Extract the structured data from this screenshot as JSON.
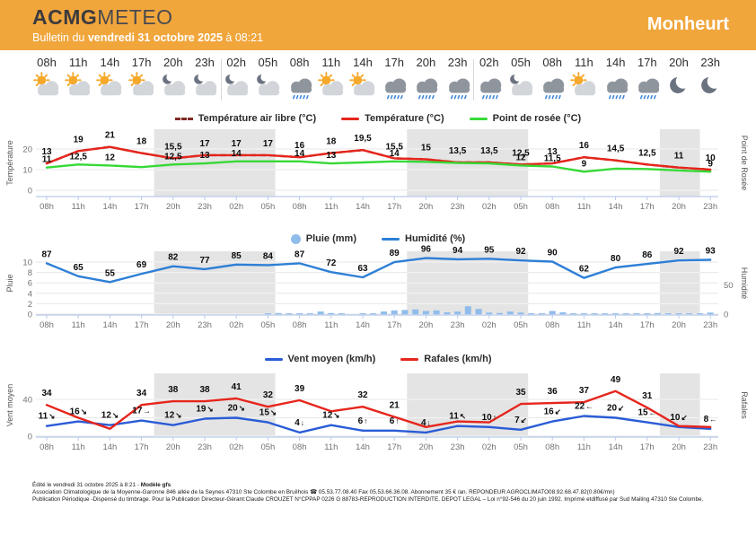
{
  "header": {
    "brand_primary": "ACMG",
    "brand_secondary": "METEO",
    "bulletin_prefix": "Bulletin du ",
    "bulletin_date": "vendredi 31 octobre 2025",
    "bulletin_time": " à 08:21",
    "location": "Monheurt"
  },
  "timeline": {
    "times": [
      "08h",
      "11h",
      "14h",
      "17h",
      "20h",
      "23h",
      "02h",
      "05h",
      "08h",
      "11h",
      "14h",
      "17h",
      "20h",
      "23h",
      "02h",
      "05h",
      "08h",
      "11h",
      "14h",
      "17h",
      "20h",
      "23h"
    ],
    "icons": [
      "partly-sunny",
      "partly-sunny",
      "partly-sunny",
      "partly-sunny",
      "cloud-moon",
      "cloud-moon",
      "cloud-moon",
      "cloud-moon",
      "rain",
      "partly-sunny",
      "partly-sunny",
      "rain",
      "rain",
      "rain",
      "rain",
      "cloud-moon",
      "rain",
      "partly-sunny",
      "rain",
      "rain",
      "moon",
      "moon"
    ],
    "day_separators_after": [
      5,
      13
    ]
  },
  "night_bands_hours": [
    [
      10.2,
      21.7
    ],
    [
      34.2,
      45.7
    ],
    [
      58.2,
      62
    ]
  ],
  "chart_data": [
    {
      "type": "line",
      "id": "temperature",
      "categories": [
        "08h",
        "11h",
        "14h",
        "17h",
        "20h",
        "23h",
        "02h",
        "05h",
        "08h",
        "11h",
        "14h",
        "17h",
        "20h",
        "23h",
        "02h",
        "05h",
        "08h",
        "11h",
        "14h",
        "17h",
        "20h",
        "23h"
      ],
      "ylabel_left": "Température",
      "ylabel_right": "Point de Rosée",
      "y_ticks": [
        0,
        10,
        20
      ],
      "ylim": [
        -3,
        26
      ],
      "legend": [
        {
          "label": "Température air libre (°C)",
          "color": "#7E2A22",
          "style": "dash"
        },
        {
          "label": "Température (°C)",
          "color": "#E6251C",
          "style": "line"
        },
        {
          "label": "Point de rosée (°C)",
          "color": "#36D936",
          "style": "line"
        }
      ],
      "series": [
        {
          "key": "air-temp-line",
          "name": "Température air libre (°C)",
          "color": "#7E2A22",
          "dash": true,
          "values": [
            13,
            19,
            21,
            18,
            15.5,
            17,
            17,
            17,
            16,
            18,
            19.5,
            15.5,
            15,
            13.5,
            13.5,
            12.5,
            13,
            16,
            14.5,
            12.5,
            11,
            10
          ]
        },
        {
          "key": "temp-line",
          "name": "Température (°C)",
          "color": "#E6251C",
          "values": [
            13,
            19,
            21,
            18,
            15.5,
            17,
            17,
            17,
            16,
            18,
            19.5,
            15.5,
            15,
            13.5,
            13.5,
            12.5,
            13,
            16,
            14.5,
            12.5,
            11,
            10
          ],
          "labels": [
            "13",
            "19",
            "21",
            "18",
            "15,5",
            "17",
            "17",
            "17",
            "16",
            "18",
            "19,5",
            "15,5",
            "15",
            "13,5",
            "13,5",
            "12,5",
            "13",
            "16",
            "14,5",
            "12,5",
            "11",
            "10"
          ]
        },
        {
          "key": "dew-point-line",
          "name": "Point de rosée (°C)",
          "color": "#36D936",
          "values": [
            11,
            12.5,
            12,
            11.2,
            12.5,
            13,
            14,
            14,
            14,
            13,
            13.5,
            14,
            13.8,
            13.2,
            13,
            12,
            11.5,
            9,
            10.5,
            10.3,
            9.6,
            9
          ],
          "labels": [
            "11",
            "12,5",
            "12",
            null,
            "12,5",
            "13",
            "14",
            null,
            "14",
            "13",
            null,
            "14",
            null,
            null,
            null,
            "12",
            "11,5",
            "9",
            null,
            null,
            null,
            "9"
          ]
        }
      ]
    },
    {
      "type": "mixed",
      "id": "rain-humidity",
      "categories": [
        "08h",
        "11h",
        "14h",
        "17h",
        "20h",
        "23h",
        "02h",
        "05h",
        "08h",
        "11h",
        "14h",
        "17h",
        "20h",
        "23h",
        "02h",
        "05h",
        "08h",
        "11h",
        "14h",
        "17h",
        "20h",
        "23h"
      ],
      "ylabel_left": "Pluie",
      "ylabel_right": "Humidité",
      "y_ticks_left": [
        0,
        2,
        4,
        6,
        8,
        10
      ],
      "y_ticks_right": [
        0,
        50
      ],
      "ylim_left": [
        0,
        10
      ],
      "ylim_right": [
        0,
        100
      ],
      "legend": [
        {
          "label": "Pluie (mm)",
          "color": "#90BCEB",
          "style": "dot"
        },
        {
          "label": "Humidité (%)",
          "color": "#2E7FD6",
          "style": "line"
        }
      ],
      "series": [
        {
          "key": "humidity-line",
          "name": "Humidité (%)",
          "color": "#2E7FD6",
          "values": [
            87,
            65,
            55,
            69,
            82,
            77,
            85,
            84,
            87,
            72,
            63,
            89,
            96,
            94,
            95,
            92,
            90,
            62,
            80,
            86,
            92,
            93
          ],
          "labels": [
            "87",
            "65",
            "55",
            "69",
            "82",
            "77",
            "85",
            "84",
            "87",
            "72",
            "63",
            "89",
            "96",
            "94",
            "95",
            "92",
            "90",
            "62",
            "80",
            "86",
            "92",
            "93"
          ]
        }
      ],
      "bars": {
        "key": "rain-bars",
        "name": "Pluie (mm)",
        "color": "#90BCEB",
        "unit": "mm",
        "hourly": [
          0,
          0,
          0,
          0,
          0,
          0,
          0,
          0,
          0,
          0,
          0,
          0,
          0,
          0,
          0,
          0,
          0,
          0,
          0,
          0,
          0,
          0.1,
          0.2,
          0.1,
          0.1,
          0.15,
          0.5,
          0.2,
          0.1,
          0,
          0.1,
          0.15,
          0.5,
          0.7,
          0.8,
          0.9,
          0.6,
          0.7,
          0.35,
          0.5,
          1.5,
          1.0,
          0.3,
          0.2,
          0.5,
          0.3,
          0.1,
          0.1,
          0.6,
          0.35,
          0.15,
          0.1,
          0.1,
          0.15,
          0.1,
          0.15,
          0.1,
          0.15,
          0.2,
          0.1,
          0.05,
          0.1,
          0.05,
          0.3
        ]
      }
    },
    {
      "type": "line",
      "id": "wind",
      "categories": [
        "08h",
        "11h",
        "14h",
        "17h",
        "20h",
        "23h",
        "02h",
        "05h",
        "08h",
        "11h",
        "14h",
        "17h",
        "20h",
        "23h",
        "02h",
        "05h",
        "08h",
        "11h",
        "14h",
        "17h",
        "20h",
        "23h"
      ],
      "ylabel_left": "Vent moyen",
      "ylabel_right": "Rafales",
      "y_ticks": [
        0,
        40
      ],
      "ylim": [
        0,
        70
      ],
      "legend": [
        {
          "label": "Vent moyen (km/h)",
          "color": "#2A5CD6",
          "style": "line"
        },
        {
          "label": "Rafales (km/h)",
          "color": "#E6251C",
          "style": "line"
        }
      ],
      "series": [
        {
          "key": "wind-mean-line",
          "name": "Vent moyen (km/h)",
          "color": "#2A5CD6",
          "values": [
            11,
            16,
            12,
            17,
            12,
            19,
            20,
            15,
            4,
            12,
            6,
            6,
            4,
            11,
            10,
            7,
            16,
            22,
            20,
            15,
            10,
            8
          ],
          "labels": [
            "11",
            "16",
            "12",
            "17",
            "12",
            "19",
            "20",
            "15",
            "4",
            "12",
            "6",
            "6",
            "4",
            "11",
            "10",
            "7",
            "16",
            "22",
            "20",
            "15",
            "10",
            "8"
          ],
          "arrows": [
            "↘",
            "↘",
            "↘",
            "→",
            "↘",
            "↘",
            "↘",
            "↘",
            "↓",
            "↘",
            "↑",
            "↑",
            "↓",
            "↖",
            "↑",
            "↙",
            "↙",
            "←",
            "↙",
            "←",
            "↙",
            "←"
          ]
        },
        {
          "key": "gust-line",
          "name": "Rafales (km/h)",
          "color": "#E6251C",
          "values": [
            34,
            20,
            8,
            34,
            38,
            38,
            41,
            32,
            39,
            27,
            32,
            21,
            10,
            16,
            15,
            35,
            36,
            37,
            49,
            31,
            11,
            10
          ],
          "labels": [
            "34",
            null,
            null,
            "34",
            "38",
            "38",
            "41",
            "32",
            "39",
            null,
            "32",
            "21",
            null,
            null,
            null,
            "35",
            "36",
            "37",
            "49",
            "31",
            null,
            null
          ]
        }
      ]
    }
  ],
  "footer": {
    "line1": "Édité le vendredi 31 octobre 2025 à 8:21 - ",
    "line1_bold": "Modèle gfs",
    "line2": "Association Climatologique de la Moyenne-Garonne 846 allée de la Seynes 47310 Ste Colombe en Bruilhois ☎ 05.53.77.08.40 Fax 05.53.66.36.08. Abonnement 35 € /an. REPONDEUR AGROCLIMATO08.92.68.47.82(0.80€/mn)",
    "line3": "Publication Périodique -Dispensé du timbrage. Pour la Publication Directeur-Gérant:Claude CROUZET N°CPPAP 0226 G 88783-REPRODUCTION INTERDITE. DEPOT LEGAL – Loi n°92-546 du 20 juin 1992. Imprimé etdiffusé par Sud Mailing 47310 Ste Colombe."
  },
  "colors": {
    "header_bg": "#F1A63C",
    "brand_dark": "#3B3B3E",
    "temp_line": "#E6251C",
    "air_temp_line": "#7E2A22",
    "dew_line": "#36D936",
    "humidity_line": "#2E7FD6",
    "rain_bar": "#90BCEB",
    "wind_mean_line": "#2A5CD6",
    "gust_line": "#E6251C",
    "night_band": "#E4E4E4",
    "axis_line": "#B9C9E9",
    "sun_color": "#F5A82A",
    "cloud_light": "#D2D5DA",
    "cloud_dark": "#8E959D",
    "moon_color": "#6B7280",
    "raindrop_color": "#3E86DB"
  }
}
